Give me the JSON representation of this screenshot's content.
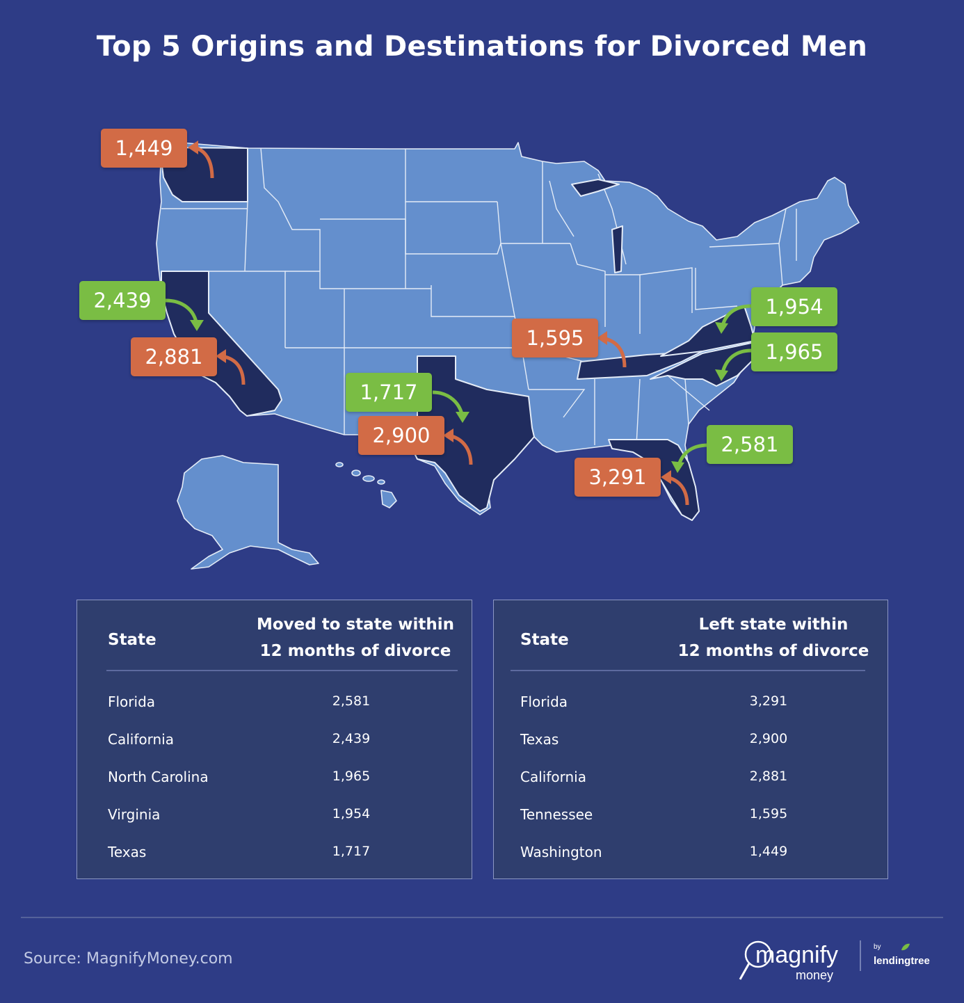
{
  "title": "Top 5 Origins and Destinations for Divorced Men",
  "map": {
    "badges": {
      "washington_left": "1,449",
      "california_moved": "2,439",
      "california_left": "2,881",
      "texas_moved": "1,717",
      "texas_left": "2,900",
      "tennessee_left": "1,595",
      "virginia_moved": "1,954",
      "north_carolina_moved": "1,965",
      "florida_moved": "2,581",
      "florida_left": "3,291"
    },
    "colors": {
      "background": "#2e3c86",
      "state": "#648fcd",
      "highlighted_state": "#202c5e",
      "left_state": "#d26b46",
      "moved_to_state": "#7abd44"
    }
  },
  "tables": {
    "moved": {
      "col_state": "State",
      "col_value_line1": "Moved to state within",
      "col_value_line2": "12 months of divorce",
      "rows": [
        {
          "state": "Florida",
          "value": "2,581"
        },
        {
          "state": "California",
          "value": "2,439"
        },
        {
          "state": "North Carolina",
          "value": "1,965"
        },
        {
          "state": "Virginia",
          "value": "1,954"
        },
        {
          "state": "Texas",
          "value": "1,717"
        }
      ]
    },
    "left": {
      "col_state": "State",
      "col_value_line1": "Left state within",
      "col_value_line2": "12 months of divorce",
      "rows": [
        {
          "state": "Florida",
          "value": "3,291"
        },
        {
          "state": "Texas",
          "value": "2,900"
        },
        {
          "state": "California",
          "value": "2,881"
        },
        {
          "state": "Tennessee",
          "value": "1,595"
        },
        {
          "state": "Washington",
          "value": "1,449"
        }
      ]
    }
  },
  "footer": {
    "source": "Source: MagnifyMoney.com",
    "logo_magnify": "magnify",
    "logo_money": "money",
    "logo_by": "by",
    "logo_lendingtree": "lendingtree"
  }
}
